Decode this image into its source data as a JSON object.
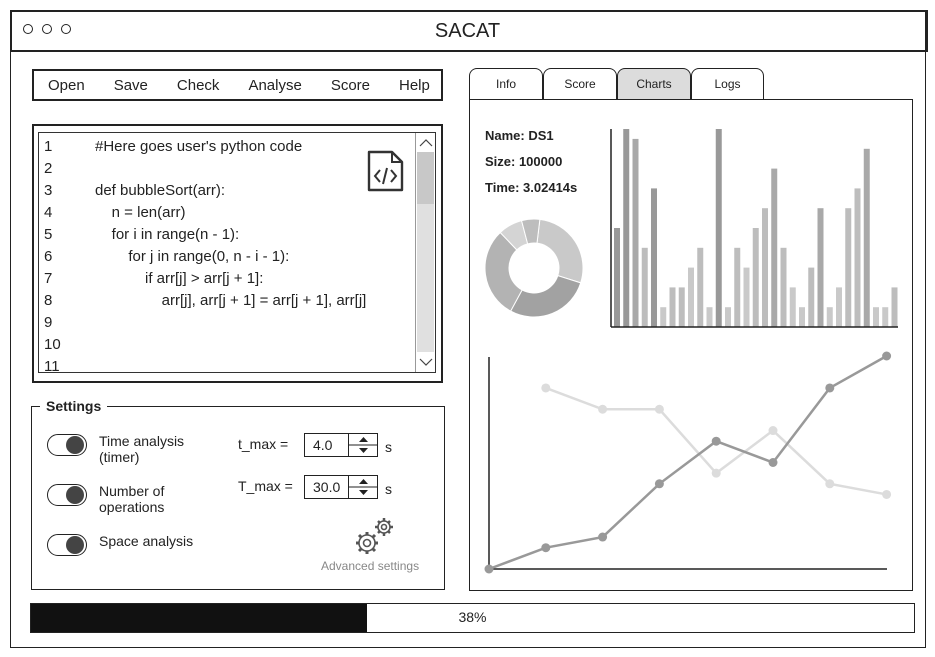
{
  "app": {
    "title": "SACAT"
  },
  "menu": [
    "Open",
    "Save",
    "Check",
    "Analyse",
    "Score",
    "Help"
  ],
  "editor": {
    "line_numbers": [
      "1",
      "2",
      "3",
      "4",
      "5",
      "6",
      "7",
      "8",
      "9",
      "10",
      "11"
    ],
    "code_lines": [
      "#Here goes user's python code",
      "",
      "def bubbleSort(arr):",
      "    n = len(arr)",
      "    for i in range(n - 1):",
      "        for j in range(0, n - i - 1):",
      "            if arr[j] > arr[j + 1]:",
      "                arr[j], arr[j + 1] = arr[j + 1], arr[j]",
      "",
      "",
      ""
    ],
    "icon": "code-file-icon"
  },
  "settings": {
    "legend": "Settings",
    "time_analysis": "Time analysis (timer)",
    "time_analysis_l1": "Time analysis",
    "time_analysis_l2": "(timer)",
    "num_ops_l1": "Number of",
    "num_ops_l2": "operations",
    "space_analysis": "Space analysis",
    "t_max_label": "t_max =",
    "t_max_value": "4.0",
    "T_max_label": "T_max =",
    "T_max_value": "30.0",
    "unit": "s",
    "advanced": "Advanced settings"
  },
  "tabs": [
    "Info",
    "Score",
    "Charts",
    "Logs"
  ],
  "active_tab": "Charts",
  "info": {
    "name": "Name: DS1",
    "size": "Size: 100000",
    "time": "Time: 3.02414s"
  },
  "progress": {
    "value": 0.38,
    "label": "38%"
  },
  "chart_data": [
    {
      "type": "pie",
      "values": [
        28,
        28,
        30,
        8,
        6
      ],
      "colors": [
        "#c9c9c9",
        "#a2a2a2",
        "#b3b3b3",
        "#d4d4d4",
        "#bdbdbd"
      ]
    },
    {
      "type": "bar",
      "values": [
        50,
        100,
        95,
        40,
        70,
        10,
        20,
        20,
        30,
        40,
        10,
        100,
        10,
        40,
        30,
        50,
        60,
        80,
        40,
        20,
        10,
        30,
        60,
        10,
        20,
        60,
        70,
        90,
        10,
        10,
        20
      ],
      "colors": [
        "#999999",
        "#999999",
        "#a9a9a9",
        "#bdbdbd",
        "#999999",
        "#c9c9c9",
        "#bdbdbd",
        "#bdbdbd",
        "#c9c9c9",
        "#bdbdbd",
        "#c9c9c9",
        "#999999",
        "#c9c9c9",
        "#bdbdbd",
        "#c9c9c9",
        "#bdbdbd",
        "#bdbdbd",
        "#a9a9a9",
        "#bdbdbd",
        "#c9c9c9",
        "#c9c9c9",
        "#bdbdbd",
        "#a9a9a9",
        "#c9c9c9",
        "#c9c9c9",
        "#bdbdbd",
        "#bdbdbd",
        "#a9a9a9",
        "#c9c9c9",
        "#c9c9c9",
        "#bdbdbd"
      ]
    },
    {
      "type": "line",
      "x": [
        0,
        1,
        2,
        3,
        4,
        5,
        6,
        7,
        8
      ],
      "series": [
        {
          "values": [
            0,
            10,
            15,
            40,
            60,
            50,
            85,
            100
          ],
          "x": [
            0,
            1,
            2,
            3,
            4,
            5,
            6,
            7
          ],
          "color": "#999999"
        },
        {
          "values": [
            85,
            75,
            75,
            45,
            65,
            40,
            35
          ],
          "x": [
            1,
            2,
            3,
            4,
            5,
            6,
            7
          ],
          "color": "#dcdcdc"
        }
      ],
      "ylim": [
        0,
        100
      ]
    }
  ]
}
